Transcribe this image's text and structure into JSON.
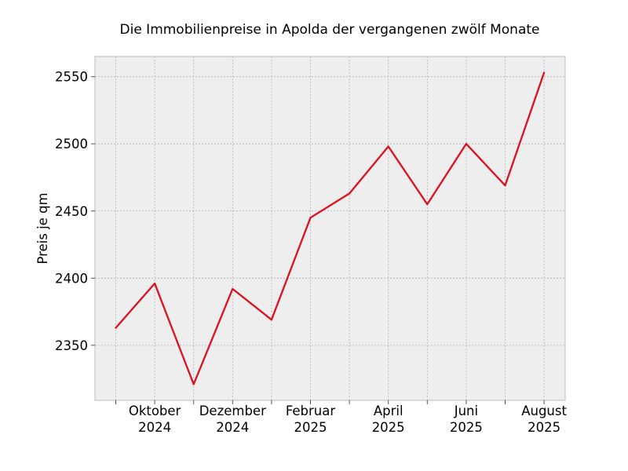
{
  "chart_data": {
    "type": "line",
    "title": "Die Immobilienpreise in Apolda der vergangenen zwölf Monate",
    "xlabel": "",
    "ylabel": "Preis je qm",
    "x": [
      "2024-09",
      "2024-10",
      "2024-11",
      "2024-12",
      "2025-01",
      "2025-02",
      "2025-03",
      "2025-04",
      "2025-05",
      "2025-06",
      "2025-07",
      "2025-08"
    ],
    "series": [
      {
        "values": [
          2363,
          2396,
          2321,
          2392,
          2369,
          2445,
          2463,
          2498,
          2455,
          2500,
          2469,
          2553
        ],
        "color": "#dc1020"
      }
    ],
    "ylim": [
      2309,
      2565
    ],
    "yticks": [
      2350,
      2400,
      2450,
      2500,
      2550
    ],
    "xtick_labels": [
      {
        "month": "Oktober",
        "year": "2024"
      },
      {
        "month": "Dezember",
        "year": "2024"
      },
      {
        "month": "Februar",
        "year": "2025"
      },
      {
        "month": "April",
        "year": "2025"
      },
      {
        "month": "Juni",
        "year": "2025"
      },
      {
        "month": "August",
        "year": "2025"
      }
    ],
    "xtick_label_indices": [
      1,
      3,
      5,
      7,
      9,
      11
    ],
    "grid": true,
    "legend": false,
    "plot_background": "#eeeeee",
    "grid_color": "#b0b0b0"
  }
}
